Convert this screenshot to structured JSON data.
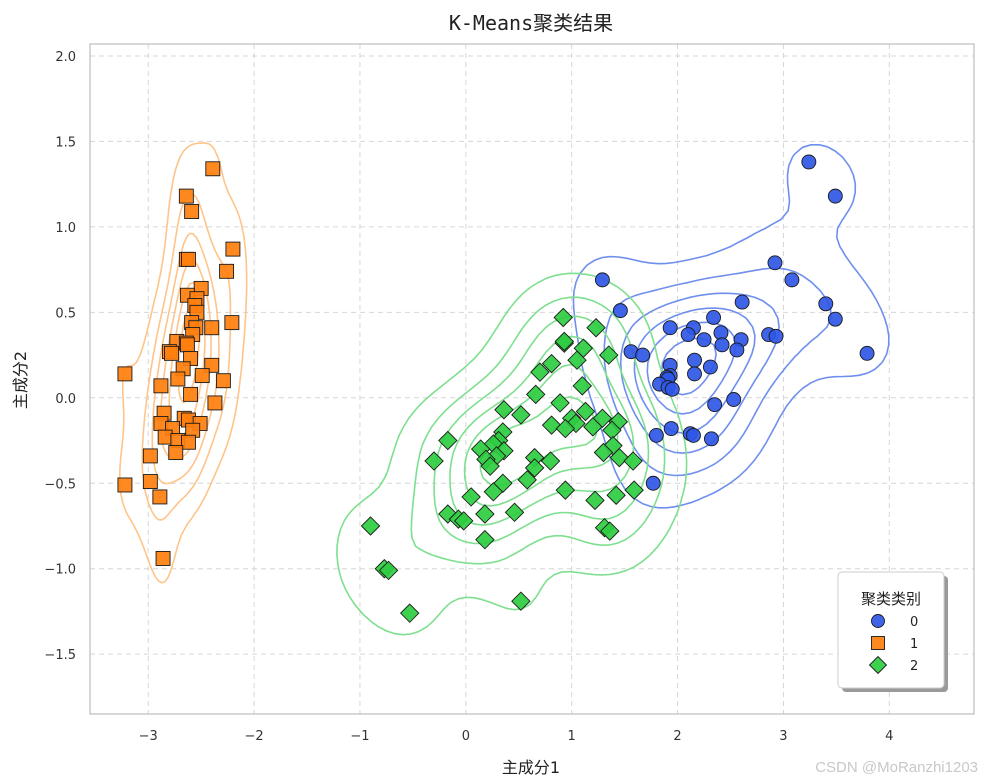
{
  "chart_data": {
    "type": "scatter",
    "title": "K-Means聚类结果",
    "xlabel": "主成分1",
    "ylabel": "主成分2",
    "xlim": [
      -3.55,
      4.8
    ],
    "ylim": [
      -1.85,
      2.07
    ],
    "xticks": [
      -3,
      -2,
      -1,
      0,
      1,
      2,
      3,
      4
    ],
    "xtick_labels": [
      "−3",
      "−2",
      "−1",
      "0",
      "1",
      "2",
      "3",
      "4"
    ],
    "yticks": [
      -1.5,
      -1.0,
      -0.5,
      0.0,
      0.5,
      1.0,
      1.5,
      2.0
    ],
    "ytick_labels": [
      "−1.5",
      "−1.0",
      "−0.5",
      "0.0",
      "0.5",
      "1.0",
      "1.5",
      "2.0"
    ],
    "grid": true,
    "legend": {
      "title": "聚类类别",
      "position": "bottom-right"
    },
    "series": [
      {
        "name": "0",
        "marker": "circle",
        "color": "#2f57e6",
        "contour_color": "#6f8fee",
        "points": [
          [
            3.24,
            1.38
          ],
          [
            3.49,
            1.18
          ],
          [
            2.92,
            0.79
          ],
          [
            3.08,
            0.69
          ],
          [
            3.4,
            0.55
          ],
          [
            3.49,
            0.46
          ],
          [
            2.61,
            0.56
          ],
          [
            1.29,
            0.69
          ],
          [
            1.46,
            0.51
          ],
          [
            2.15,
            0.41
          ],
          [
            1.93,
            0.41
          ],
          [
            2.34,
            0.47
          ],
          [
            2.41,
            0.38
          ],
          [
            2.1,
            0.37
          ],
          [
            2.86,
            0.37
          ],
          [
            2.93,
            0.36
          ],
          [
            2.6,
            0.34
          ],
          [
            2.25,
            0.34
          ],
          [
            2.42,
            0.31
          ],
          [
            2.56,
            0.28
          ],
          [
            1.56,
            0.27
          ],
          [
            1.67,
            0.25
          ],
          [
            3.79,
            0.26
          ],
          [
            2.16,
            0.22
          ],
          [
            1.93,
            0.19
          ],
          [
            2.31,
            0.18
          ],
          [
            2.16,
            0.14
          ],
          [
            1.93,
            0.13
          ],
          [
            1.9,
            0.12
          ],
          [
            1.91,
            0.11
          ],
          [
            1.83,
            0.08
          ],
          [
            1.91,
            0.06
          ],
          [
            1.95,
            0.05
          ],
          [
            2.53,
            -0.01
          ],
          [
            2.35,
            -0.04
          ],
          [
            1.94,
            -0.18
          ],
          [
            1.8,
            -0.22
          ],
          [
            2.12,
            -0.21
          ],
          [
            2.15,
            -0.22
          ],
          [
            2.32,
            -0.24
          ],
          [
            1.77,
            -0.5
          ]
        ]
      },
      {
        "name": "1",
        "marker": "square",
        "color": "#ff7f0e",
        "contour_color": "#ffc48a",
        "points": [
          [
            -2.39,
            1.34
          ],
          [
            -2.64,
            1.18
          ],
          [
            -2.59,
            1.09
          ],
          [
            -2.2,
            0.87
          ],
          [
            -2.64,
            0.81
          ],
          [
            -2.62,
            0.81
          ],
          [
            -2.26,
            0.74
          ],
          [
            -2.5,
            0.64
          ],
          [
            -2.63,
            0.6
          ],
          [
            -2.54,
            0.58
          ],
          [
            -2.56,
            0.54
          ],
          [
            -2.54,
            0.5
          ],
          [
            -2.59,
            0.44
          ],
          [
            -2.21,
            0.44
          ],
          [
            -2.4,
            0.41
          ],
          [
            -2.55,
            0.41
          ],
          [
            -2.58,
            0.37
          ],
          [
            -2.73,
            0.33
          ],
          [
            -2.64,
            0.32
          ],
          [
            -2.63,
            0.31
          ],
          [
            -2.8,
            0.27
          ],
          [
            -2.78,
            0.26
          ],
          [
            -2.6,
            0.23
          ],
          [
            -2.4,
            0.19
          ],
          [
            -2.67,
            0.17
          ],
          [
            -3.22,
            0.14
          ],
          [
            -2.49,
            0.13
          ],
          [
            -2.72,
            0.11
          ],
          [
            -2.29,
            0.1
          ],
          [
            -2.88,
            0.07
          ],
          [
            -2.6,
            0.02
          ],
          [
            -2.37,
            -0.03
          ],
          [
            -2.85,
            -0.09
          ],
          [
            -2.66,
            -0.12
          ],
          [
            -2.62,
            -0.13
          ],
          [
            -2.88,
            -0.15
          ],
          [
            -2.51,
            -0.15
          ],
          [
            -2.77,
            -0.18
          ],
          [
            -2.58,
            -0.19
          ],
          [
            -2.84,
            -0.23
          ],
          [
            -2.72,
            -0.25
          ],
          [
            -2.62,
            -0.26
          ],
          [
            -2.74,
            -0.32
          ],
          [
            -2.98,
            -0.34
          ],
          [
            -2.98,
            -0.49
          ],
          [
            -3.22,
            -0.51
          ],
          [
            -2.89,
            -0.58
          ],
          [
            -2.86,
            -0.94
          ]
        ]
      },
      {
        "name": "2",
        "marker": "diamond",
        "color": "#2ecc40",
        "contour_color": "#7edf8f",
        "points": [
          [
            0.92,
            0.47
          ],
          [
            1.23,
            0.41
          ],
          [
            0.93,
            0.32
          ],
          [
            0.93,
            0.33
          ],
          [
            1.11,
            0.29
          ],
          [
            1.35,
            0.25
          ],
          [
            1.05,
            0.22
          ],
          [
            0.81,
            0.2
          ],
          [
            0.7,
            0.15
          ],
          [
            1.1,
            0.07
          ],
          [
            0.66,
            0.02
          ],
          [
            0.89,
            -0.03
          ],
          [
            0.36,
            -0.07
          ],
          [
            0.52,
            -0.1
          ],
          [
            1.0,
            -0.12
          ],
          [
            1.13,
            -0.08
          ],
          [
            1.29,
            -0.12
          ],
          [
            1.04,
            -0.15
          ],
          [
            0.81,
            -0.16
          ],
          [
            0.94,
            -0.18
          ],
          [
            1.2,
            -0.17
          ],
          [
            1.44,
            -0.14
          ],
          [
            1.38,
            -0.19
          ],
          [
            0.35,
            -0.2
          ],
          [
            0.31,
            -0.25
          ],
          [
            -0.17,
            -0.25
          ],
          [
            0.26,
            -0.27
          ],
          [
            0.36,
            -0.31
          ],
          [
            0.14,
            -0.3
          ],
          [
            1.39,
            -0.28
          ],
          [
            1.3,
            -0.32
          ],
          [
            0.29,
            -0.34
          ],
          [
            0.19,
            -0.36
          ],
          [
            0.65,
            -0.35
          ],
          [
            0.23,
            -0.4
          ],
          [
            -0.3,
            -0.37
          ],
          [
            0.8,
            -0.37
          ],
          [
            1.45,
            -0.35
          ],
          [
            1.58,
            -0.37
          ],
          [
            0.65,
            -0.41
          ],
          [
            0.58,
            -0.48
          ],
          [
            0.35,
            -0.5
          ],
          [
            0.26,
            -0.55
          ],
          [
            0.94,
            -0.54
          ],
          [
            1.42,
            -0.57
          ],
          [
            1.59,
            -0.54
          ],
          [
            0.05,
            -0.58
          ],
          [
            1.22,
            -0.6
          ],
          [
            -0.17,
            -0.68
          ],
          [
            -0.07,
            -0.71
          ],
          [
            0.18,
            -0.68
          ],
          [
            0.46,
            -0.67
          ],
          [
            -0.02,
            -0.72
          ],
          [
            1.31,
            -0.76
          ],
          [
            1.36,
            -0.78
          ],
          [
            0.18,
            -0.83
          ],
          [
            -0.9,
            -0.75
          ],
          [
            -0.77,
            -1.0
          ],
          [
            -0.73,
            -1.01
          ],
          [
            0.52,
            -1.19
          ],
          [
            -0.53,
            -1.26
          ]
        ]
      }
    ],
    "watermark": "CSDN @MoRanzhi1203"
  }
}
